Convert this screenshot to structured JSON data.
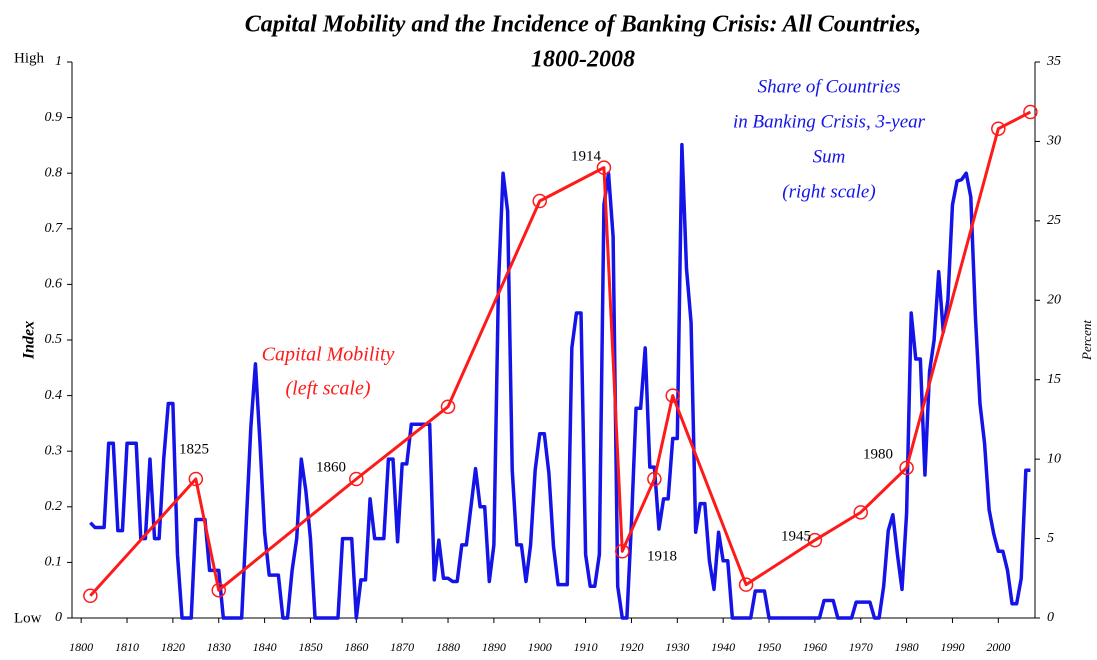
{
  "chart_data": {
    "type": "line",
    "title": [
      "Capital Mobility and the Incidence of Banking Crisis: All Countries,",
      "1800-2008"
    ],
    "ylabel": "Index",
    "y2label": "Percent",
    "y_end_labels": {
      "low": "Low",
      "high": "High"
    },
    "xlim": [
      1798,
      2008
    ],
    "xticks": [
      1800,
      1810,
      1820,
      1830,
      1840,
      1850,
      1860,
      1870,
      1880,
      1890,
      1900,
      1910,
      1920,
      1930,
      1940,
      1950,
      1960,
      1970,
      1980,
      1990,
      2000
    ],
    "ylim": [
      0,
      1
    ],
    "yticks": [
      0,
      0.1,
      0.2,
      0.3,
      0.4,
      0.5,
      0.6,
      0.7,
      0.8,
      0.9,
      1
    ],
    "y2lim": [
      0,
      35
    ],
    "y2ticks": [
      0,
      5,
      10,
      15,
      20,
      25,
      30,
      35
    ],
    "grid": false,
    "annotations": {
      "years": [
        "1825",
        "1860",
        "1914",
        "1918",
        "1945",
        "1980"
      ],
      "left_series": [
        "Capital Mobility",
        "(left scale)"
      ],
      "right_series": [
        "Share of Countries",
        "in Banking Crisis, 3-year",
        "Sum",
        "(right scale)"
      ]
    },
    "series": [
      {
        "name": "Capital Mobility",
        "color": "#ff1a1a",
        "marker": "circle",
        "x": [
          1802,
          1825,
          1830,
          1860,
          1880,
          1900,
          1914,
          1918,
          1925,
          1929,
          1945,
          1960,
          1970,
          1980,
          2000,
          2007
        ],
        "values": [
          0.04,
          0.25,
          0.05,
          0.25,
          0.38,
          0.75,
          0.81,
          0.12,
          0.25,
          0.4,
          0.06,
          0.14,
          0.19,
          0.27,
          0.88,
          0.91
        ]
      },
      {
        "name": "Share of Countries in Banking Crisis, 3-year Sum",
        "color": "#1414e8",
        "axis": "y2",
        "x": [
          1802,
          1803,
          1804,
          1805,
          1806,
          1807,
          1808,
          1809,
          1810,
          1811,
          1812,
          1813,
          1814,
          1815,
          1816,
          1817,
          1818,
          1819,
          1820,
          1821,
          1822,
          1823,
          1824,
          1825,
          1826,
          1827,
          1828,
          1829,
          1830,
          1831,
          1832,
          1833,
          1834,
          1835,
          1836,
          1837,
          1838,
          1839,
          1840,
          1841,
          1842,
          1843,
          1844,
          1845,
          1846,
          1847,
          1848,
          1849,
          1850,
          1851,
          1852,
          1853,
          1854,
          1855,
          1856,
          1857,
          1858,
          1859,
          1860,
          1861,
          1862,
          1863,
          1864,
          1865,
          1866,
          1867,
          1868,
          1869,
          1870,
          1871,
          1872,
          1873,
          1874,
          1875,
          1876,
          1877,
          1878,
          1879,
          1880,
          1881,
          1882,
          1883,
          1884,
          1885,
          1886,
          1887,
          1888,
          1889,
          1890,
          1891,
          1892,
          1893,
          1894,
          1895,
          1896,
          1897,
          1898,
          1899,
          1900,
          1901,
          1902,
          1903,
          1904,
          1905,
          1906,
          1907,
          1908,
          1909,
          1910,
          1911,
          1912,
          1913,
          1914,
          1915,
          1916,
          1917,
          1918,
          1919,
          1920,
          1921,
          1922,
          1923,
          1924,
          1925,
          1926,
          1927,
          1928,
          1929,
          1930,
          1931,
          1932,
          1933,
          1934,
          1935,
          1936,
          1937,
          1938,
          1939,
          1940,
          1941,
          1942,
          1943,
          1944,
          1945,
          1946,
          1947,
          1948,
          1949,
          1950,
          1951,
          1952,
          1953,
          1954,
          1955,
          1956,
          1957,
          1958,
          1959,
          1960,
          1961,
          1962,
          1963,
          1964,
          1965,
          1966,
          1967,
          1968,
          1969,
          1970,
          1971,
          1972,
          1973,
          1974,
          1975,
          1976,
          1977,
          1978,
          1979,
          1980,
          1981,
          1982,
          1983,
          1984,
          1985,
          1986,
          1987,
          1988,
          1989,
          1990,
          1991,
          1992,
          1993,
          1994,
          1995,
          1996,
          1997,
          1998,
          1999,
          2000,
          2001,
          2002,
          2003,
          2004,
          2005,
          2006,
          2007
        ],
        "values": [
          6,
          5.7,
          5.7,
          5.7,
          11,
          11,
          5.5,
          5.5,
          11,
          11,
          11,
          5,
          5,
          10,
          5,
          5,
          10,
          13.5,
          13.5,
          4,
          0,
          0,
          0,
          6.2,
          6.2,
          6.2,
          3,
          3,
          3,
          0,
          0,
          0,
          0,
          0,
          6,
          12,
          16,
          11,
          5.4,
          2.7,
          2.7,
          2.7,
          0,
          0,
          3,
          5,
          10,
          8,
          5,
          0,
          0,
          0,
          0,
          0,
          0,
          5,
          5,
          5,
          0,
          2.4,
          2.4,
          7.5,
          5,
          5,
          5,
          10,
          10,
          4.8,
          9.7,
          9.7,
          12.2,
          12.2,
          12.2,
          12.2,
          12.2,
          2.4,
          4.9,
          2.5,
          2.5,
          2.3,
          2.3,
          4.6,
          4.6,
          7,
          9.4,
          7,
          7,
          2.3,
          4.6,
          21,
          28,
          25.6,
          9.3,
          4.6,
          4.6,
          2.3,
          4.6,
          9.3,
          11.6,
          11.6,
          9.1,
          4.5,
          2.1,
          2.1,
          2.1,
          17,
          19.2,
          19.2,
          4,
          2,
          2,
          4,
          26,
          28,
          24,
          2,
          0,
          0,
          6,
          13.2,
          13.2,
          17,
          9.5,
          9.5,
          5.6,
          7.5,
          7.5,
          11.3,
          11.3,
          29.8,
          22,
          18.6,
          5.4,
          7.2,
          7.2,
          3.6,
          1.8,
          5.4,
          3.6,
          3.6,
          0,
          0,
          0,
          0,
          0,
          1.7,
          1.7,
          1.7,
          0,
          0,
          0,
          0,
          0,
          0,
          0,
          0,
          0,
          0,
          0,
          0,
          1.1,
          1.1,
          1.1,
          0,
          0,
          0,
          0,
          1,
          1,
          1,
          1,
          0,
          0,
          2,
          5.5,
          6.5,
          4,
          1.8,
          6.6,
          19.2,
          16.3,
          16.3,
          9,
          15.5,
          17.5,
          21.8,
          18,
          20,
          26,
          27.5,
          27.6,
          28,
          26.5,
          19,
          13.5,
          11,
          6.8,
          5.3,
          4.2,
          4.2,
          3,
          0.9,
          0.9,
          2.5,
          9.3,
          9.3
        ]
      }
    ]
  }
}
